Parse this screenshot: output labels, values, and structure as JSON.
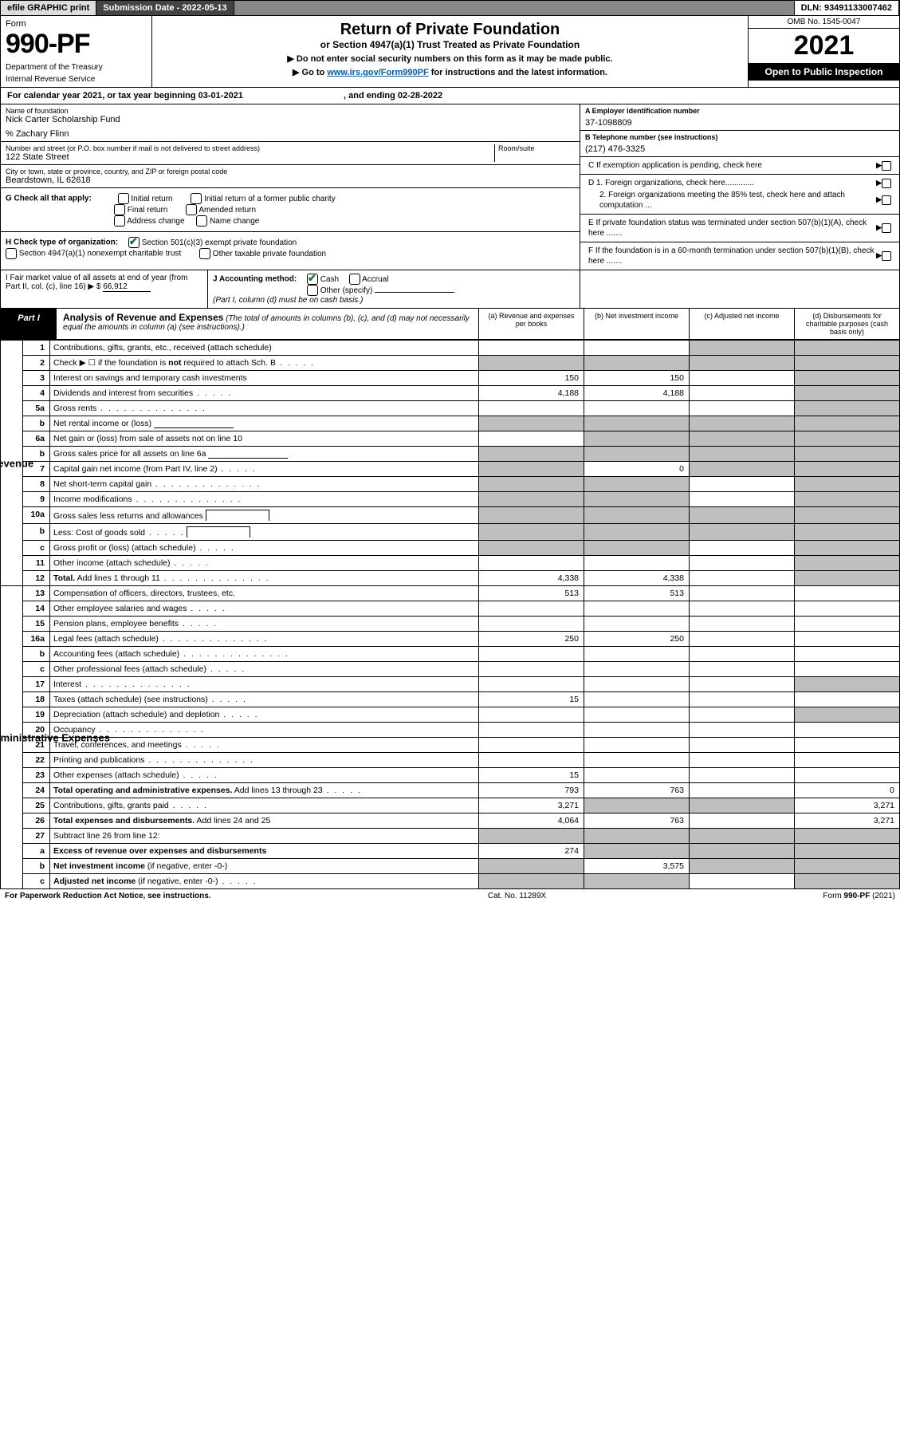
{
  "topbar": {
    "efile": "efile GRAPHIC print",
    "sublabel": "Submission Date - 2022-05-13",
    "dlnlabel": "DLN: 93491133007462"
  },
  "header": {
    "form_word": "Form",
    "form_no": "990-PF",
    "dept1": "Department of the Treasury",
    "dept2": "Internal Revenue Service",
    "title": "Return of Private Foundation",
    "subtitle": "or Section 4947(a)(1) Trust Treated as Private Foundation",
    "instr1": "▶ Do not enter social security numbers on this form as it may be made public.",
    "instr2_pre": "▶ Go to ",
    "instr2_link": "www.irs.gov/Form990PF",
    "instr2_post": " for instructions and the latest information.",
    "omb": "OMB No. 1545-0047",
    "year": "2021",
    "open": "Open to Public Inspection"
  },
  "cy": {
    "text_a": "For calendar year 2021, or tax year beginning 03-01-2021",
    "text_b": ", and ending 02-28-2022"
  },
  "info_left": {
    "name_lab": "Name of foundation",
    "name_val": "Nick Carter Scholarship Fund",
    "care": "% Zachary Flinn",
    "addr_lab": "Number and street (or P.O. box number if mail is not delivered to street address)",
    "addr_val": "122 State Street",
    "room_lab": "Room/suite",
    "city_lab": "City or town, state or province, country, and ZIP or foreign postal code",
    "city_val": "Beardstown, IL  62618"
  },
  "info_right": {
    "a_lab": "A Employer identification number",
    "a_val": "37-1098809",
    "b_lab": "B Telephone number (see instructions)",
    "b_val": "(217) 476-3325",
    "c_lab": "C If exemption application is pending, check here",
    "d1": "D 1. Foreign organizations, check here.............",
    "d2": "2. Foreign organizations meeting the 85% test, check here and attach computation ...",
    "e": "E  If private foundation status was terminated under section 507(b)(1)(A), check here .......",
    "f": "F  If the foundation is in a 60-month termination under section 507(b)(1)(B), check here ......."
  },
  "g": {
    "lab": "G Check all that apply:",
    "o1": "Initial return",
    "o2": "Initial return of a former public charity",
    "o3": "Final return",
    "o4": "Amended return",
    "o5": "Address change",
    "o6": "Name change"
  },
  "h": {
    "lab": "H Check type of organization:",
    "o1": "Section 501(c)(3) exempt private foundation",
    "o2": "Section 4947(a)(1) nonexempt charitable trust",
    "o3": "Other taxable private foundation"
  },
  "i": {
    "lab": "I Fair market value of all assets at end of year (from Part II, col. (c), line 16) ▶ $",
    "val": "66,912"
  },
  "j": {
    "lab": "J Accounting method:",
    "o1": "Cash",
    "o2": "Accrual",
    "o3": "Other (specify)",
    "note": "(Part I, column (d) must be on cash basis.)"
  },
  "part1": {
    "label": "Part I",
    "title": "Analysis of Revenue and Expenses",
    "note": " (The total of amounts in columns (b), (c), and (d) may not necessarily equal the amounts in column (a) (see instructions).)",
    "ca": "(a)   Revenue and expenses per books",
    "cb": "(b)   Net investment income",
    "cc": "(c)   Adjusted net income",
    "cd": "(d)   Disbursements for charitable purposes (cash basis only)"
  },
  "side": {
    "rev": "Revenue",
    "exp": "Operating and Administrative Expenses"
  },
  "rows": [
    {
      "n": "1",
      "d": "Contributions, gifts, grants, etc., received (attach schedule)",
      "a": "",
      "b": "",
      "c": "g",
      "dd": "g"
    },
    {
      "n": "2",
      "d": "Check ▶ ☐ if the foundation is <b>not</b> required to attach Sch. B",
      "dots": "s",
      "a": "g",
      "b": "g",
      "c": "g",
      "dd": "g"
    },
    {
      "n": "3",
      "d": "Interest on savings and temporary cash investments",
      "a": "150",
      "b": "150",
      "c": "",
      "dd": "g"
    },
    {
      "n": "4",
      "d": "Dividends and interest from securities",
      "dots": "s",
      "a": "4,188",
      "b": "4,188",
      "c": "",
      "dd": "g"
    },
    {
      "n": "5a",
      "d": "Gross rents",
      "dots": "y",
      "a": "",
      "b": "",
      "c": "",
      "dd": "g"
    },
    {
      "n": "b",
      "d": "Net rental income or (loss) ",
      "input": true,
      "a": "g",
      "b": "g",
      "c": "g",
      "dd": "g"
    },
    {
      "n": "6a",
      "d": "Net gain or (loss) from sale of assets not on line 10",
      "a": "",
      "b": "g",
      "c": "g",
      "dd": "g"
    },
    {
      "n": "b",
      "d": "Gross sales price for all assets on line 6a ",
      "input": true,
      "a": "g",
      "b": "g",
      "c": "g",
      "dd": "g"
    },
    {
      "n": "7",
      "d": "Capital gain net income (from Part IV, line 2)",
      "dots": "s",
      "a": "g",
      "b": "0",
      "c": "g",
      "dd": "g"
    },
    {
      "n": "8",
      "d": "Net short-term capital gain",
      "dots": "y",
      "a": "g",
      "b": "g",
      "c": "",
      "dd": "g"
    },
    {
      "n": "9",
      "d": "Income modifications",
      "dots": "y",
      "a": "g",
      "b": "g",
      "c": "",
      "dd": "g"
    },
    {
      "n": "10a",
      "d": "Gross sales less returns and allowances ",
      "box": true,
      "a": "g",
      "b": "g",
      "c": "g",
      "dd": "g"
    },
    {
      "n": "b",
      "d": "Less: Cost of goods sold",
      "dots": "s",
      "box": true,
      "a": "g",
      "b": "g",
      "c": "g",
      "dd": "g"
    },
    {
      "n": "c",
      "d": "Gross profit or (loss) (attach schedule)",
      "dots": "s",
      "a": "g",
      "b": "g",
      "c": "",
      "dd": "g"
    },
    {
      "n": "11",
      "d": "Other income (attach schedule)",
      "dots": "s",
      "a": "",
      "b": "",
      "c": "",
      "dd": "g"
    },
    {
      "n": "12",
      "d": "<b>Total.</b> Add lines 1 through 11",
      "dots": "y",
      "a": "4,338",
      "b": "4,338",
      "c": "",
      "dd": "g"
    },
    {
      "n": "13",
      "d": "Compensation of officers, directors, trustees, etc.",
      "a": "513",
      "b": "513",
      "c": "",
      "dd": ""
    },
    {
      "n": "14",
      "d": "Other employee salaries and wages",
      "dots": "s",
      "a": "",
      "b": "",
      "c": "",
      "dd": ""
    },
    {
      "n": "15",
      "d": "Pension plans, employee benefits",
      "dots": "s",
      "a": "",
      "b": "",
      "c": "",
      "dd": ""
    },
    {
      "n": "16a",
      "d": "Legal fees (attach schedule)",
      "dots": "y",
      "a": "250",
      "b": "250",
      "c": "",
      "dd": ""
    },
    {
      "n": "b",
      "d": "Accounting fees (attach schedule)",
      "dots": "y",
      "a": "",
      "b": "",
      "c": "",
      "dd": ""
    },
    {
      "n": "c",
      "d": "Other professional fees (attach schedule)",
      "dots": "s",
      "a": "",
      "b": "",
      "c": "",
      "dd": ""
    },
    {
      "n": "17",
      "d": "Interest",
      "dots": "y",
      "a": "",
      "b": "",
      "c": "",
      "dd": "g"
    },
    {
      "n": "18",
      "d": "Taxes (attach schedule) (see instructions)",
      "dots": "s",
      "a": "15",
      "b": "",
      "c": "",
      "dd": ""
    },
    {
      "n": "19",
      "d": "Depreciation (attach schedule) and depletion",
      "dots": "s",
      "a": "",
      "b": "",
      "c": "",
      "dd": "g"
    },
    {
      "n": "20",
      "d": "Occupancy",
      "dots": "y",
      "a": "",
      "b": "",
      "c": "",
      "dd": ""
    },
    {
      "n": "21",
      "d": "Travel, conferences, and meetings",
      "dots": "s",
      "a": "",
      "b": "",
      "c": "",
      "dd": ""
    },
    {
      "n": "22",
      "d": "Printing and publications",
      "dots": "y",
      "a": "",
      "b": "",
      "c": "",
      "dd": ""
    },
    {
      "n": "23",
      "d": "Other expenses (attach schedule)",
      "dots": "s",
      "a": "15",
      "b": "",
      "c": "",
      "dd": ""
    },
    {
      "n": "24",
      "d": "<b>Total operating and administrative expenses.</b> Add lines 13 through 23",
      "dots": "s",
      "a": "793",
      "b": "763",
      "c": "",
      "dd": "0"
    },
    {
      "n": "25",
      "d": "Contributions, gifts, grants paid",
      "dots": "s",
      "a": "3,271",
      "b": "g",
      "c": "g",
      "dd": "3,271"
    },
    {
      "n": "26",
      "d": "<b>Total expenses and disbursements.</b> Add lines 24 and 25",
      "a": "4,064",
      "b": "763",
      "c": "",
      "dd": "3,271"
    },
    {
      "n": "27",
      "d": "Subtract line 26 from line 12:",
      "a": "g",
      "b": "g",
      "c": "g",
      "dd": "g"
    },
    {
      "n": "a",
      "d": "<b>Excess of revenue over expenses and disbursements</b>",
      "a": "274",
      "b": "g",
      "c": "g",
      "dd": "g"
    },
    {
      "n": "b",
      "d": "<b>Net investment income</b> (if negative, enter -0-)",
      "a": "g",
      "b": "3,575",
      "c": "g",
      "dd": "g"
    },
    {
      "n": "c",
      "d": "<b>Adjusted net income</b> (if negative, enter -0-)",
      "dots": "s",
      "a": "g",
      "b": "g",
      "c": "",
      "dd": "g"
    }
  ],
  "footer": {
    "left": "For Paperwork Reduction Act Notice, see instructions.",
    "mid": "Cat. No. 11289X",
    "right": "Form 990-PF (2021)"
  },
  "colors": {
    "grey": "#bfbfbf",
    "darkbar": "#444",
    "link": "#0a5aa0"
  }
}
